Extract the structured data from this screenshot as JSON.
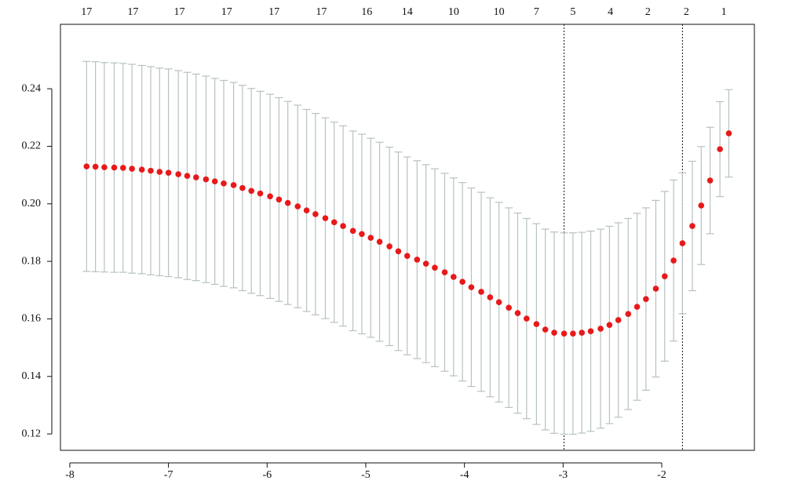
{
  "chart_data": {
    "type": "errorbar-scatter",
    "xlim": [
      -8.095,
      -1.061
    ],
    "ylim": [
      0.1143,
      0.2624
    ],
    "xticks": [
      -8,
      -7,
      -6,
      -5,
      -4,
      -3,
      -2
    ],
    "yticks": [
      0.12,
      0.14,
      0.16,
      0.18,
      {
        "value": 0.2,
        "label": "0.20"
      },
      0.22,
      0.24
    ],
    "x2ticks": [
      {
        "value": -7.83,
        "label": "17"
      },
      {
        "value": -7.36,
        "label": "17"
      },
      {
        "value": -6.89,
        "label": "17"
      },
      {
        "value": -6.41,
        "label": "17"
      },
      {
        "value": -5.93,
        "label": "17"
      },
      {
        "value": -5.45,
        "label": "17"
      },
      {
        "value": -4.99,
        "label": "16"
      },
      {
        "value": -4.58,
        "label": "14"
      },
      {
        "value": -4.11,
        "label": "10"
      },
      {
        "value": -3.65,
        "label": "10"
      },
      {
        "value": -3.27,
        "label": "7"
      },
      {
        "value": -2.9,
        "label": "5"
      },
      {
        "value": -2.52,
        "label": "4"
      },
      {
        "value": -2.14,
        "label": "2"
      },
      {
        "value": -1.75,
        "label": "2"
      },
      {
        "value": -1.37,
        "label": "1"
      }
    ],
    "vlines": [
      -2.99,
      -1.79
    ],
    "x": [
      -7.83,
      -7.74,
      -7.65,
      -7.55,
      -7.46,
      -7.37,
      -7.27,
      -7.18,
      -7.09,
      -7.0,
      -6.9,
      -6.81,
      -6.72,
      -6.62,
      -6.53,
      -6.44,
      -6.34,
      -6.25,
      -6.16,
      -6.07,
      -5.97,
      -5.88,
      -5.79,
      -5.69,
      -5.6,
      -5.51,
      -5.41,
      -5.32,
      -5.23,
      -5.13,
      -5.04,
      -4.95,
      -4.86,
      -4.76,
      -4.67,
      -4.58,
      -4.48,
      -4.39,
      -4.3,
      -4.2,
      -4.11,
      -4.02,
      -3.93,
      -3.83,
      -3.74,
      -3.65,
      -3.55,
      -3.46,
      -3.37,
      -3.27,
      -3.18,
      -3.09,
      -2.99,
      -2.9,
      -2.81,
      -2.72,
      -2.62,
      -2.53,
      -2.44,
      -2.34,
      -2.25,
      -2.16,
      -2.06,
      -1.97,
      -1.88,
      -1.79,
      -1.69,
      -1.6,
      -1.51,
      -1.41,
      -1.32
    ],
    "series": [
      {
        "color": "#e8191a",
        "error_color": "#b7c1c1",
        "values": [
          0.213,
          0.2129,
          0.2127,
          0.2126,
          0.2125,
          0.2122,
          0.2119,
          0.2115,
          0.2111,
          0.2108,
          0.2103,
          0.2097,
          0.2092,
          0.2085,
          0.2078,
          0.2071,
          0.2065,
          0.2055,
          0.2045,
          0.2036,
          0.2026,
          0.2015,
          0.2003,
          0.1991,
          0.1977,
          0.1964,
          0.195,
          0.1936,
          0.1923,
          0.1906,
          0.1895,
          0.1882,
          0.1868,
          0.1852,
          0.1835,
          0.1819,
          0.1806,
          0.1792,
          0.1778,
          0.1762,
          0.1746,
          0.1729,
          0.171,
          0.1694,
          0.1675,
          0.1658,
          0.1639,
          0.162,
          0.1601,
          0.1582,
          0.1563,
          0.1552,
          0.1549,
          0.1549,
          0.1552,
          0.1557,
          0.1566,
          0.1579,
          0.1596,
          0.1617,
          0.1642,
          0.1669,
          0.1705,
          0.1748,
          0.1803,
          0.1863,
          0.1923,
          0.1994,
          0.2081,
          0.219,
          0.2245
        ],
        "errors": [
          0.0365,
          0.0365,
          0.0364,
          0.0364,
          0.0363,
          0.0363,
          0.0362,
          0.0362,
          0.0361,
          0.0361,
          0.036,
          0.036,
          0.0359,
          0.0359,
          0.0358,
          0.0358,
          0.0357,
          0.0357,
          0.0356,
          0.0355,
          0.0355,
          0.0354,
          0.0353,
          0.0352,
          0.0351,
          0.035,
          0.0349,
          0.0348,
          0.0348,
          0.0347,
          0.0347,
          0.0346,
          0.0346,
          0.0345,
          0.0345,
          0.0344,
          0.0344,
          0.0344,
          0.0344,
          0.0344,
          0.0344,
          0.0345,
          0.0345,
          0.0346,
          0.0346,
          0.0347,
          0.0347,
          0.0348,
          0.0348,
          0.0349,
          0.0349,
          0.035,
          0.035,
          0.035,
          0.0349,
          0.0348,
          0.0346,
          0.0343,
          0.0338,
          0.0332,
          0.0325,
          0.0317,
          0.0307,
          0.0295,
          0.028,
          0.0245,
          0.0225,
          0.0205,
          0.0185,
          0.0165,
          0.0152
        ]
      }
    ]
  }
}
